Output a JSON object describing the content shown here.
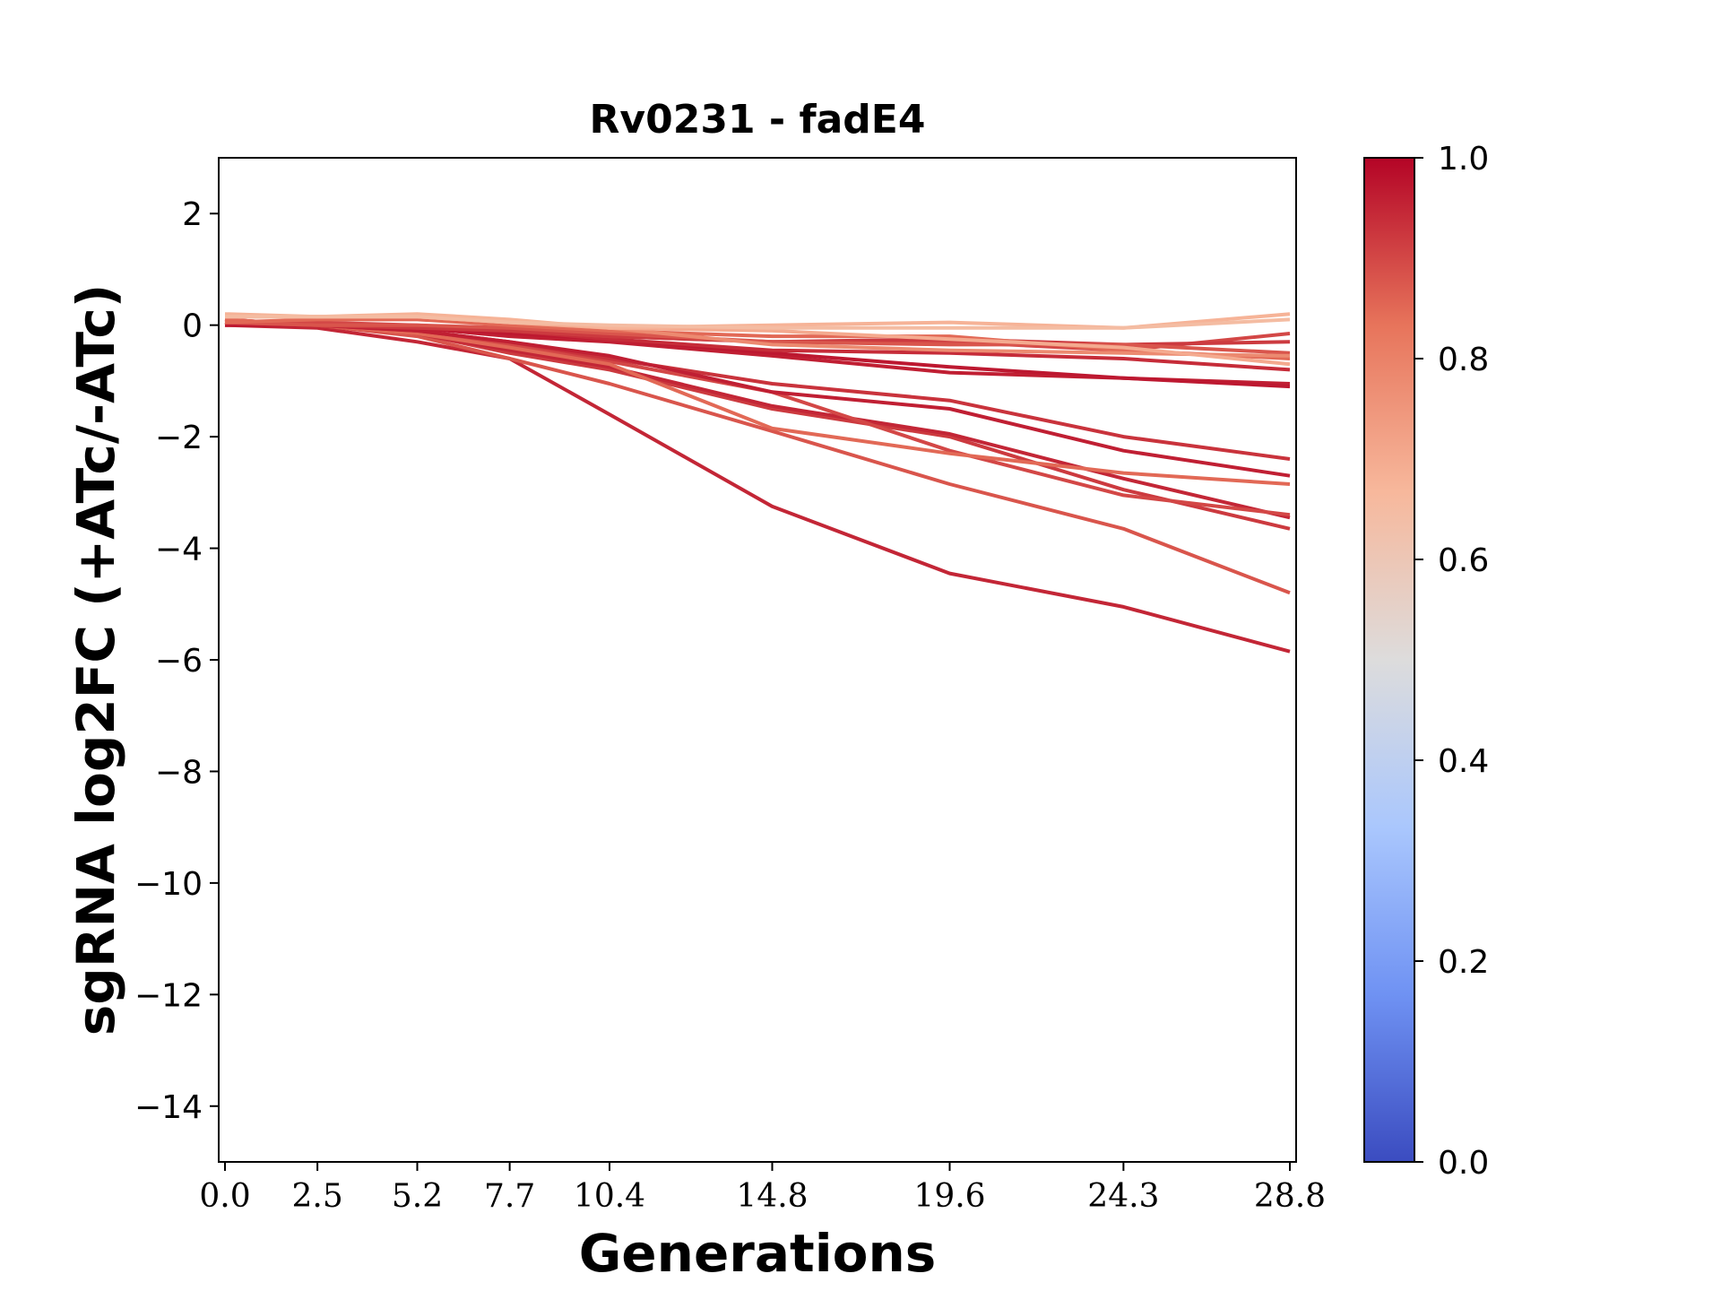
{
  "chart_data": {
    "type": "line",
    "title": "Rv0231 - fadE4",
    "xlabel": "Generations",
    "ylabel": "sgRNA log2FC (+ATc/-ATc)",
    "x": [
      0.0,
      2.5,
      5.2,
      7.7,
      10.4,
      14.8,
      19.6,
      24.3,
      28.8
    ],
    "x_tick_labels": [
      "0.0",
      "2.5",
      "5.2",
      "7.7",
      "10.4",
      "14.8",
      "19.6",
      "24.3",
      "28.8"
    ],
    "ylim": [
      -15,
      3
    ],
    "y_ticks": [
      2,
      0,
      -2,
      -4,
      -6,
      -8,
      -10,
      -12,
      -14
    ],
    "y_tick_labels": [
      "2",
      "0",
      "−2",
      "−4",
      "−6",
      "−8",
      "−10",
      "−12",
      "−14"
    ],
    "grid": false,
    "colorbar": {
      "colormap": "coolwarm",
      "range": [
        0.0,
        1.0
      ],
      "ticks": [
        "0.0",
        "0.2",
        "0.4",
        "0.6",
        "0.8",
        "1.0"
      ],
      "color_stops": [
        "#3b4cc0",
        "#6f92f3",
        "#aac7fd",
        "#dddcdc",
        "#f7b89c",
        "#e7745b",
        "#b40426"
      ]
    },
    "series": [
      {
        "color_value": 0.95,
        "values": [
          0.0,
          -0.05,
          -0.3,
          -0.6,
          -1.6,
          -3.25,
          -4.45,
          -5.05,
          -5.85
        ]
      },
      {
        "color_value": 0.88,
        "values": [
          0.1,
          0.0,
          -0.2,
          -0.6,
          -1.05,
          -1.9,
          -2.85,
          -3.65,
          -4.8
        ]
      },
      {
        "color_value": 0.92,
        "values": [
          0.1,
          0.0,
          -0.15,
          -0.5,
          -0.8,
          -1.5,
          -2.0,
          -2.95,
          -3.65
        ]
      },
      {
        "color_value": 0.95,
        "values": [
          0.05,
          0.0,
          -0.15,
          -0.45,
          -0.75,
          -1.45,
          -1.95,
          -2.75,
          -3.45
        ]
      },
      {
        "color_value": 0.9,
        "values": [
          0.05,
          0.0,
          -0.1,
          -0.35,
          -0.65,
          -1.2,
          -2.25,
          -3.05,
          -3.4
        ]
      },
      {
        "color_value": 0.85,
        "values": [
          0.1,
          0.0,
          -0.15,
          -0.4,
          -0.7,
          -1.85,
          -2.3,
          -2.65,
          -2.85
        ]
      },
      {
        "color_value": 0.93,
        "values": [
          0.05,
          0.0,
          -0.1,
          -0.3,
          -0.6,
          -1.05,
          -1.35,
          -2.0,
          -2.4
        ]
      },
      {
        "color_value": 0.96,
        "values": [
          0.05,
          0.0,
          -0.1,
          -0.3,
          -0.55,
          -1.2,
          -1.5,
          -2.25,
          -2.7
        ]
      },
      {
        "color_value": 0.96,
        "values": [
          0.05,
          0.0,
          -0.05,
          -0.2,
          -0.3,
          -0.55,
          -0.85,
          -0.95,
          -1.05
        ]
      },
      {
        "color_value": 0.97,
        "values": [
          0.0,
          0.0,
          -0.05,
          -0.15,
          -0.25,
          -0.5,
          -0.75,
          -0.95,
          -1.1
        ]
      },
      {
        "color_value": 0.94,
        "values": [
          0.05,
          0.0,
          -0.05,
          -0.1,
          -0.25,
          -0.45,
          -0.5,
          -0.6,
          -0.8
        ]
      },
      {
        "color_value": 0.9,
        "values": [
          0.05,
          0.05,
          0.0,
          -0.1,
          -0.2,
          -0.3,
          -0.3,
          -0.45,
          -0.15
        ]
      },
      {
        "color_value": 0.92,
        "values": [
          0.05,
          0.0,
          -0.05,
          -0.1,
          -0.2,
          -0.3,
          -0.25,
          -0.35,
          -0.3
        ]
      },
      {
        "color_value": 0.88,
        "values": [
          0.05,
          0.0,
          0.0,
          -0.05,
          -0.15,
          -0.3,
          -0.35,
          -0.35,
          -0.5
        ]
      },
      {
        "color_value": 0.85,
        "values": [
          0.05,
          0.1,
          0.1,
          0.0,
          -0.1,
          -0.2,
          -0.2,
          -0.45,
          -0.6
        ]
      },
      {
        "color_value": 0.78,
        "values": [
          0.15,
          0.15,
          0.15,
          0.05,
          -0.05,
          -0.35,
          -0.45,
          -0.5,
          -0.55
        ]
      },
      {
        "color_value": 0.7,
        "values": [
          0.15,
          0.15,
          0.15,
          0.05,
          -0.05,
          -0.1,
          -0.25,
          -0.4,
          -0.7
        ]
      },
      {
        "color_value": 0.68,
        "values": [
          0.2,
          0.15,
          0.2,
          0.1,
          -0.05,
          0.0,
          0.05,
          -0.05,
          0.2
        ]
      },
      {
        "color_value": 0.65,
        "values": [
          0.15,
          0.15,
          0.15,
          0.05,
          0.0,
          -0.05,
          -0.05,
          -0.05,
          0.1
        ]
      }
    ]
  }
}
